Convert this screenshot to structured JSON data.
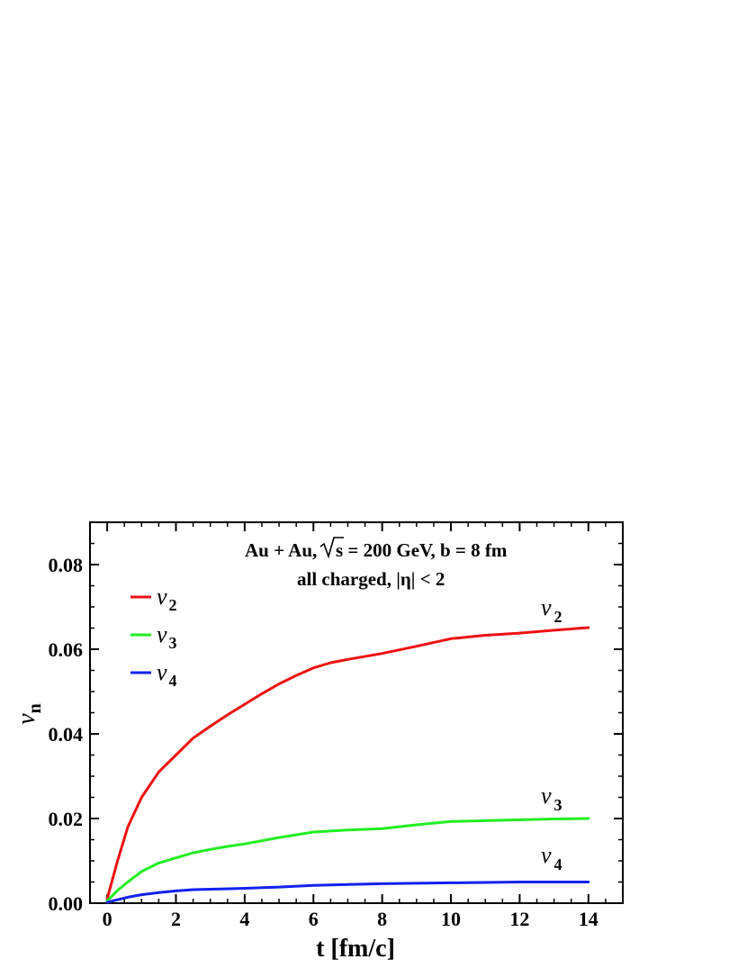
{
  "chart_data": {
    "type": "line",
    "xlabel": "t [fm/c]",
    "ylabel": {
      "main": "v",
      "sub": "n"
    },
    "xlim": [
      -0.5,
      15
    ],
    "ylim": [
      0,
      0.09
    ],
    "xticks": [
      "0",
      "2",
      "4",
      "6",
      "8",
      "10",
      "12",
      "14"
    ],
    "yticks": [
      "0.00",
      "0.02",
      "0.04",
      "0.06",
      "0.08"
    ],
    "annotation": {
      "line1_a": "Au + Au,",
      "line1_b": "s = 200 GeV, b = 8 fm",
      "line2": "all charged, |η| < 2"
    },
    "legend_position": "top-left",
    "grid": false,
    "series": [
      {
        "name": "v",
        "sub": "2",
        "color": "#ee1111",
        "x": [
          0,
          0.3,
          0.6,
          1.0,
          1.5,
          2.0,
          2.5,
          3.0,
          3.5,
          4.0,
          4.5,
          5.0,
          5.5,
          6.0,
          6.5,
          7.0,
          8.0,
          9.0,
          10.0,
          11.0,
          12.0,
          13.0,
          14.0
        ],
        "y": [
          0.001,
          0.01,
          0.018,
          0.025,
          0.031,
          0.035,
          0.039,
          0.0418,
          0.0445,
          0.047,
          0.0495,
          0.0518,
          0.0538,
          0.0556,
          0.0568,
          0.0576,
          0.059,
          0.0607,
          0.0625,
          0.0633,
          0.0638,
          0.0645,
          0.0651
        ]
      },
      {
        "name": "v",
        "sub": "3",
        "color": "#22ee22",
        "x": [
          0,
          0.3,
          0.6,
          1.0,
          1.5,
          2.0,
          2.5,
          3.0,
          3.5,
          4.0,
          5.0,
          6.0,
          7.0,
          8.0,
          9.0,
          10.0,
          11.0,
          12.0,
          13.0,
          14.0
        ],
        "y": [
          0.0005,
          0.003,
          0.005,
          0.0075,
          0.0095,
          0.0107,
          0.0119,
          0.0127,
          0.0134,
          0.014,
          0.0155,
          0.0168,
          0.0173,
          0.0176,
          0.0185,
          0.0193,
          0.0195,
          0.0197,
          0.0199,
          0.02
        ]
      },
      {
        "name": "v",
        "sub": "4",
        "color": "#1122ee",
        "x": [
          0,
          0.3,
          0.6,
          1.0,
          1.5,
          2.0,
          2.5,
          3.0,
          4.0,
          5.0,
          6.0,
          7.0,
          8.0,
          9.0,
          10.0,
          11.0,
          12.0,
          13.0,
          14.0
        ],
        "y": [
          0.0002,
          0.0008,
          0.0014,
          0.002,
          0.0025,
          0.0029,
          0.0032,
          0.0033,
          0.0035,
          0.0038,
          0.0042,
          0.0044,
          0.0046,
          0.0047,
          0.0048,
          0.0049,
          0.005,
          0.005,
          0.005
        ]
      }
    ]
  }
}
